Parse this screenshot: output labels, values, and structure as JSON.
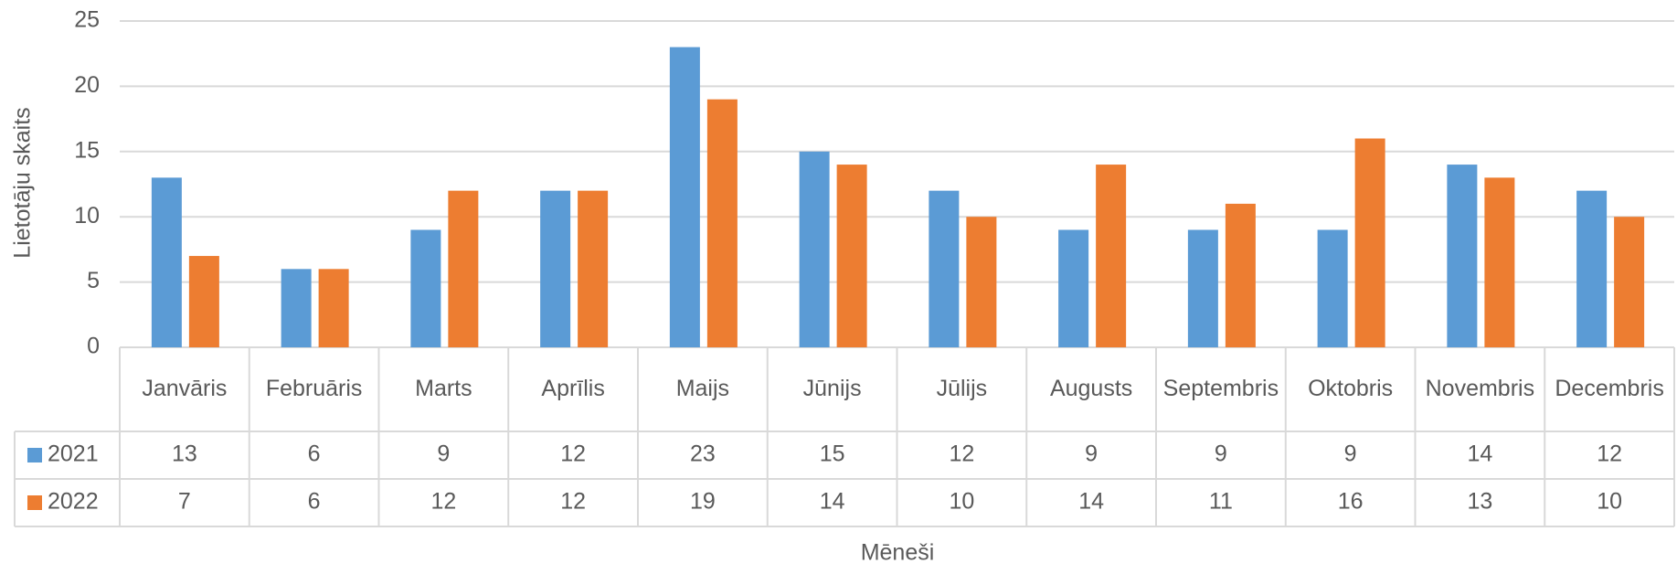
{
  "chart_data": {
    "type": "bar",
    "y_label": "Lietotāju skaits",
    "x_label": "Mēneši",
    "categories": [
      "Janvāris",
      "Februāris",
      "Marts",
      "Aprīlis",
      "Maijs",
      "Jūnijs",
      "Jūlijs",
      "Augusts",
      "Septembris",
      "Oktobris",
      "Novembris",
      "Decembris"
    ],
    "series": [
      {
        "name": "2021",
        "color": "#5b9bd5",
        "values": [
          13,
          6,
          9,
          12,
          23,
          15,
          12,
          9,
          9,
          9,
          14,
          12
        ]
      },
      {
        "name": "2022",
        "color": "#ed7d31",
        "values": [
          7,
          6,
          12,
          12,
          19,
          14,
          10,
          14,
          11,
          16,
          13,
          10
        ]
      }
    ],
    "ylim": [
      0,
      25
    ],
    "yticks": [
      0,
      5,
      10,
      15,
      20,
      25
    ],
    "grid": true,
    "data_table": true
  }
}
